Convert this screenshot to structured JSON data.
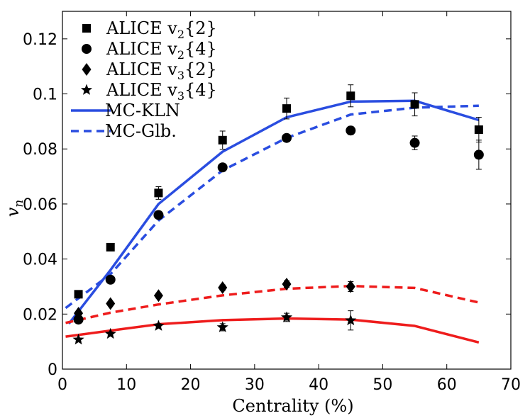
{
  "chart_data": {
    "type": "line",
    "title": "",
    "xlabel": "Centrality (%)",
    "ylabel": "v_n",
    "xlim": [
      0,
      70
    ],
    "ylim": [
      0,
      0.13
    ],
    "xticks": [
      0,
      10,
      20,
      30,
      40,
      50,
      60,
      70
    ],
    "xtick_labels": [
      "0",
      "10",
      "20",
      "30",
      "40",
      "50",
      "60",
      "70"
    ],
    "yticks": [
      0,
      0.02,
      0.04,
      0.06,
      0.08,
      0.1,
      0.12
    ],
    "ytick_labels": [
      "0",
      "0.02",
      "0.04",
      "0.06",
      "0.08",
      "0.1",
      "0.12"
    ],
    "legend_position": "top-left",
    "series": [
      {
        "name": "ALICE v2{2}",
        "legend_main": "ALICE v",
        "legend_sub": "2",
        "legend_tail": "{2}",
        "kind": "marker",
        "marker": "square",
        "color": "#000000",
        "x": [
          2.5,
          7.5,
          15,
          25,
          35,
          45,
          55,
          65
        ],
        "y": [
          0.0272,
          0.0443,
          0.064,
          0.0832,
          0.0947,
          0.0993,
          0.0962,
          0.087
        ],
        "err": [
          0.0004,
          0.0007,
          0.0023,
          0.0033,
          0.0038,
          0.004,
          0.0042,
          0.0045
        ]
      },
      {
        "name": "ALICE v2{4}",
        "legend_main": "ALICE v",
        "legend_sub": "2",
        "legend_tail": "{4}",
        "kind": "marker",
        "marker": "circle",
        "color": "#000000",
        "x": [
          2.5,
          7.5,
          15,
          25,
          35,
          45,
          55,
          65
        ],
        "y": [
          0.018,
          0.0325,
          0.056,
          0.0733,
          0.084,
          0.0867,
          0.0822,
          0.0779
        ],
        "err": [
          0.0008,
          0.0008,
          0.0009,
          0.001,
          0.0012,
          0.0015,
          0.0025,
          0.0053
        ]
      },
      {
        "name": "ALICE v3{2}",
        "legend_main": "ALICE v",
        "legend_sub": "3",
        "legend_tail": "{2}",
        "kind": "marker",
        "marker": "diamond",
        "color": "#000000",
        "x": [
          2.5,
          7.5,
          15,
          25,
          35,
          45
        ],
        "y": [
          0.0203,
          0.0238,
          0.0267,
          0.0296,
          0.0309,
          0.03
        ],
        "err": [
          0.0007,
          0.0008,
          0.0009,
          0.001,
          0.0012,
          0.0018
        ]
      },
      {
        "name": "ALICE v3{4}",
        "legend_main": "ALICE v",
        "legend_sub": "3",
        "legend_tail": "{4}",
        "kind": "marker",
        "marker": "star",
        "color": "#000000",
        "x": [
          2.5,
          7.5,
          15,
          25,
          35,
          45
        ],
        "y": [
          0.0107,
          0.0128,
          0.0157,
          0.0152,
          0.0188,
          0.0177
        ],
        "err": [
          0.0005,
          0.0007,
          0.0008,
          0.0013,
          0.0015,
          0.0035
        ]
      },
      {
        "name": "MC-KLN",
        "legend_main": "MC-KLN",
        "kind": "line",
        "style": "solid",
        "color": "#2a4de0",
        "x": [
          1,
          7.5,
          15,
          25,
          35,
          45,
          55,
          65
        ],
        "y": [
          0.0165,
          0.036,
          0.06,
          0.079,
          0.0915,
          0.0972,
          0.0975,
          0.0905
        ]
      },
      {
        "name": "MC-Glb.",
        "legend_main": "MC-Glb.",
        "kind": "line",
        "style": "dashed",
        "color": "#2a4de0",
        "x": [
          0.5,
          7.5,
          15,
          25,
          35,
          45,
          55,
          65
        ],
        "y": [
          0.0222,
          0.0345,
          0.054,
          0.0722,
          0.084,
          0.0925,
          0.095,
          0.0957
        ]
      },
      {
        "name": "v3 MC-KLN",
        "legend": false,
        "kind": "line",
        "style": "solid",
        "color": "#ee1c1c",
        "x": [
          0.5,
          7.5,
          15,
          25,
          35,
          45,
          55,
          65
        ],
        "y": [
          0.0118,
          0.014,
          0.0163,
          0.0178,
          0.0184,
          0.018,
          0.0157,
          0.0097
        ]
      },
      {
        "name": "v3 MC-Glb.",
        "legend": false,
        "kind": "line",
        "style": "dashed",
        "color": "#ee1c1c",
        "x": [
          0.5,
          7.5,
          15,
          25,
          35,
          45,
          55,
          65
        ],
        "y": [
          0.0168,
          0.0205,
          0.0235,
          0.0268,
          0.0292,
          0.0302,
          0.0295,
          0.0242
        ]
      }
    ]
  }
}
